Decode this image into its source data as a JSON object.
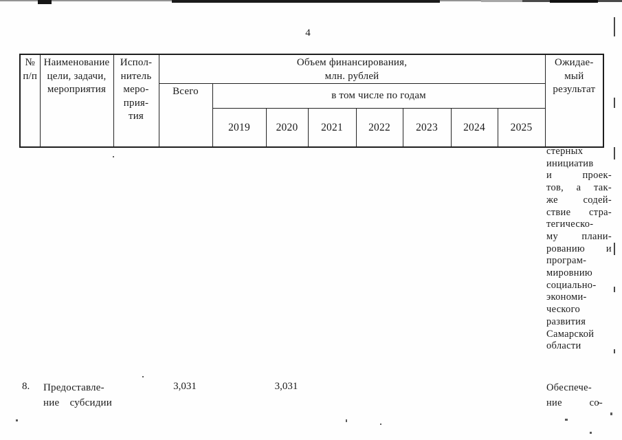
{
  "page": {
    "number": "4"
  },
  "colors": {
    "ink": "#1a1a1a",
    "paper": "#fefefe"
  },
  "table": {
    "header": {
      "num": "№\nп/п",
      "name": "Наименование\nцели, задачи,\nмероприятия",
      "executor": "Испол-\nнитель\nмеро-\nприя-\nтия",
      "financing": "Объем финансирования,\nмлн. рублей",
      "total": "Всего",
      "by_years": "в том числе по годам",
      "years": [
        "2019",
        "2020",
        "2021",
        "2022",
        "2023",
        "2024",
        "2025"
      ],
      "expected": "Ожидае-\nмый\nрезультат"
    }
  },
  "body": {
    "carryover_result_lines": [
      "стерных",
      "инициатив",
      "и проек-",
      "тов, а так-",
      "же содей-",
      "ствие стра-",
      "тегическо-",
      "му плани-",
      "рованию и",
      "програм-",
      "мировнию",
      "социально-",
      "экономи-",
      "ческого",
      "развития",
      "Самарской",
      "области"
    ],
    "row8": {
      "num": "8.",
      "name_lines": [
        "Предоставле-",
        "ние субсидии"
      ],
      "total": "3,031",
      "year_2020": "3,031",
      "result_lines": [
        "Обеспече-",
        "ние со-"
      ]
    }
  }
}
